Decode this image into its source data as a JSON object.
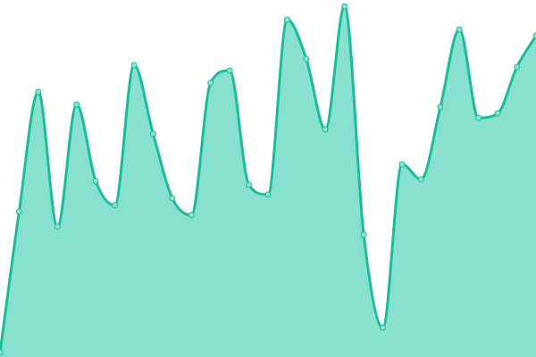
{
  "chart_data": {
    "type": "area",
    "values": [
      5,
      163,
      297,
      146,
      283,
      197,
      170,
      327,
      250,
      178,
      159,
      307,
      321,
      193,
      182,
      378,
      334,
      255,
      393,
      137,
      33,
      216,
      199,
      280,
      367,
      268,
      273,
      325,
      360
    ],
    "ylim": [
      0,
      400
    ],
    "grid": false,
    "legend": "none",
    "colors": {
      "line": "#1abc9c",
      "fill": "#88e0cf",
      "marker_fill": "#8fe3d2"
    }
  }
}
